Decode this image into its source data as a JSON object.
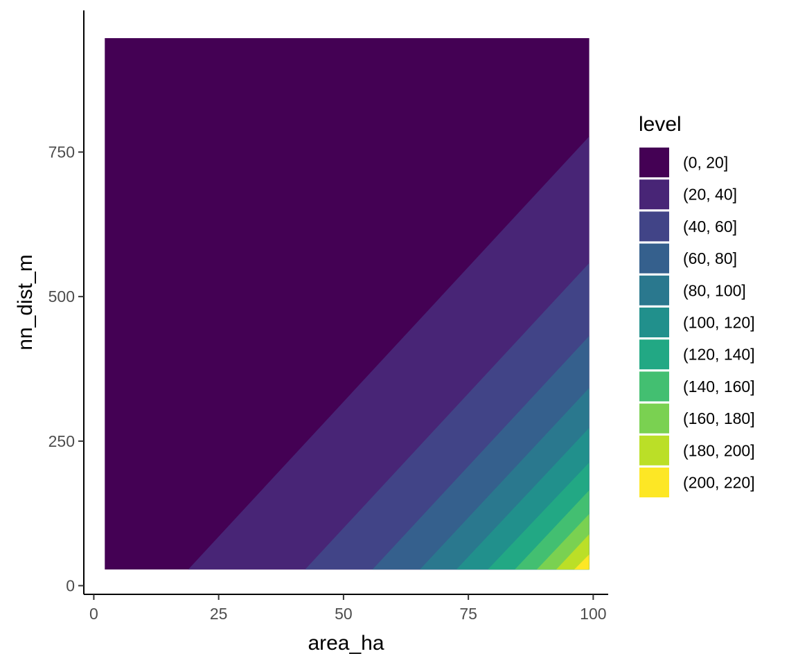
{
  "chart_data": {
    "type": "filled-contour",
    "xlabel": "area_ha",
    "ylabel": "nn_dist_m",
    "xlim": [
      -2,
      103
    ],
    "ylim": [
      -15,
      995
    ],
    "x_ticks": [
      "0",
      "25",
      "50",
      "75",
      "100"
    ],
    "x_tick_values": [
      0,
      25,
      50,
      75,
      100
    ],
    "y_ticks": [
      "0",
      "250",
      "500",
      "750"
    ],
    "y_tick_values": [
      0,
      250,
      500,
      750
    ],
    "data_range": {
      "x": [
        2.2,
        99.2
      ],
      "y": [
        28,
        947
      ]
    },
    "legend": {
      "title": "level",
      "placement": "right",
      "levels": [
        {
          "label": "(0, 20]",
          "color": "#440154"
        },
        {
          "label": "(20, 40]",
          "color": "#482576"
        },
        {
          "label": "(40, 60]",
          "color": "#414487"
        },
        {
          "label": "(60, 80]",
          "color": "#35608D"
        },
        {
          "label": "(80, 100]",
          "color": "#2A788E"
        },
        {
          "label": "(100, 120]",
          "color": "#21908C"
        },
        {
          "label": "(120, 140]",
          "color": "#22A884"
        },
        {
          "label": "(140, 160]",
          "color": "#43BF71"
        },
        {
          "label": "(160, 180]",
          "color": "#7AD151"
        },
        {
          "label": "(180, 200]",
          "color": "#BBDF27"
        },
        {
          "label": "(200, 220]",
          "color": "#FDE725"
        }
      ]
    },
    "contour_boundaries": [
      {
        "level": 20,
        "points": [
          [
            18.9,
            28
          ],
          [
            99.2,
            777
          ]
        ]
      },
      {
        "level": 40,
        "points": [
          [
            42.3,
            28
          ],
          [
            99.2,
            558
          ]
        ]
      },
      {
        "level": 60,
        "points": [
          [
            55.8,
            28
          ],
          [
            99.2,
            432
          ]
        ]
      },
      {
        "level": 80,
        "points": [
          [
            65.3,
            28
          ],
          [
            99.2,
            342
          ]
        ]
      },
      {
        "level": 100,
        "points": [
          [
            72.6,
            28
          ],
          [
            99.2,
            273
          ]
        ]
      },
      {
        "level": 120,
        "points": [
          [
            78.9,
            28
          ],
          [
            99.2,
            213
          ]
        ]
      },
      {
        "level": 140,
        "points": [
          [
            84.3,
            28
          ],
          [
            99.2,
            165
          ]
        ]
      },
      {
        "level": 160,
        "points": [
          [
            88.7,
            28
          ],
          [
            99.2,
            124
          ]
        ]
      },
      {
        "level": 180,
        "points": [
          [
            92.6,
            28
          ],
          [
            99.2,
            89
          ]
        ]
      },
      {
        "level": 200,
        "points": [
          [
            96.2,
            28
          ],
          [
            99.2,
            54
          ]
        ]
      }
    ]
  }
}
